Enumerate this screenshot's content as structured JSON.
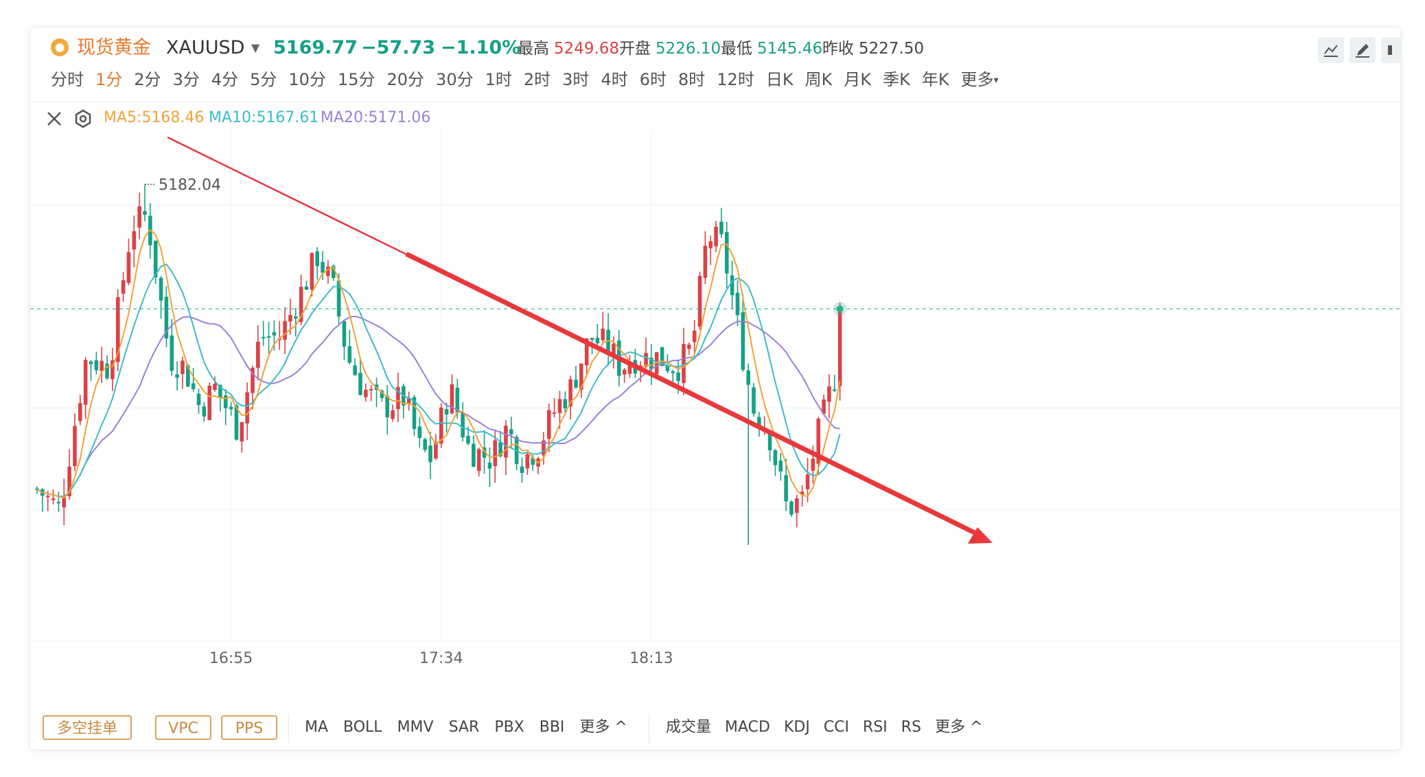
{
  "header": {
    "name": "现货黄金",
    "symbol": "XAUUSD",
    "price": "5169.77",
    "change": "−57.73",
    "change_pct": "−1.10%",
    "high_label": "最高",
    "high": "5249.68",
    "open_label": "开盘",
    "open": "5226.10",
    "low_label": "最低",
    "low": "5145.46",
    "prev_label": "昨收",
    "prev": "5227.50"
  },
  "periods": [
    "分时",
    "1分",
    "2分",
    "3分",
    "4分",
    "5分",
    "10分",
    "15分",
    "20分",
    "30分",
    "1时",
    "2时",
    "3时",
    "4时",
    "6时",
    "8时",
    "12时",
    "日K",
    "周K",
    "月K",
    "季K",
    "年K",
    "更多"
  ],
  "active_period": "1分",
  "ma_legend": {
    "ma5": "MA5:5168.46",
    "ma10": "MA10:5167.61",
    "ma20": "MA20:5171.06"
  },
  "chart_data": {
    "type": "candlestick",
    "x_ticks": [
      "16:55",
      "17:34",
      "18:13"
    ],
    "annotations": {
      "max_label": "5182.04"
    },
    "colors": {
      "up": "#d94246",
      "down": "#16a085",
      "ma5": "#f0a238",
      "ma10": "#3bbcc8",
      "ma20": "#9b7fd4",
      "arrow": "#e8383b",
      "current_line": "#2fae8c"
    },
    "ma_last": {
      "MA5": 5168.46,
      "MA10": 5167.61,
      "MA20": 5171.06
    },
    "price_high_shown": 5182.04,
    "current_price": 5169.77
  },
  "indicators_left": [
    "多空挂单",
    "VPC",
    "PPS"
  ],
  "indicators_main": [
    "MA",
    "BOLL",
    "MMV",
    "SAR",
    "PBX",
    "BBI",
    "更多 ^"
  ],
  "indicators_sub": [
    "成交量",
    "MACD",
    "KDJ",
    "CCI",
    "RSI",
    "RS",
    "更多 ^"
  ],
  "icons": {
    "close": "close-icon",
    "settings": "settings-icon",
    "chart_type": "line-chart-icon",
    "draw": "pencil-icon"
  }
}
